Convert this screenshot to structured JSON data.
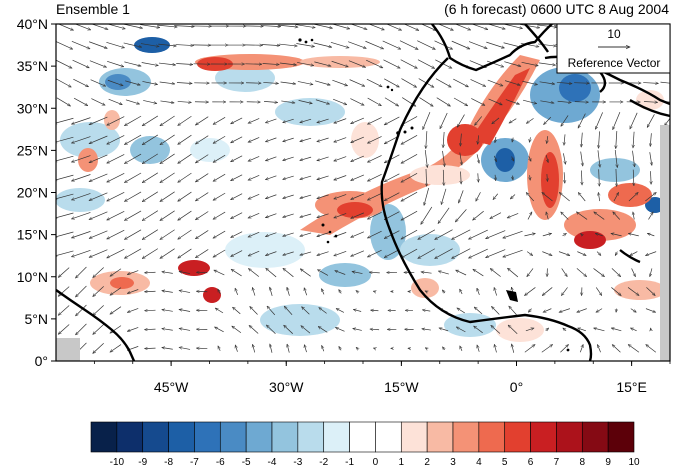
{
  "title_left": "Ensemble 1",
  "title_right": "(6 h forecast) 0600 UTC 8 Aug 2004",
  "reference_vector": {
    "magnitude": "10",
    "label": "Reference Vector"
  },
  "map": {
    "lon_range": [
      -60,
      20
    ],
    "lat_range": [
      0,
      40
    ],
    "lat_ticks": [
      {
        "value": 40,
        "label": "40°N"
      },
      {
        "value": 35,
        "label": "35°N"
      },
      {
        "value": 30,
        "label": "30°N"
      },
      {
        "value": 25,
        "label": "25°N"
      },
      {
        "value": 20,
        "label": "20°N"
      },
      {
        "value": 15,
        "label": "15°N"
      },
      {
        "value": 10,
        "label": "10°N"
      },
      {
        "value": 5,
        "label": "5°N"
      },
      {
        "value": 0,
        "label": "0°"
      }
    ],
    "lon_ticks": [
      {
        "value": -45,
        "label": "45°W"
      },
      {
        "value": -30,
        "label": "30°W"
      },
      {
        "value": -15,
        "label": "15°W"
      },
      {
        "value": 0,
        "label": "0°"
      },
      {
        "value": 15,
        "label": "15°E"
      }
    ]
  },
  "colorbar": {
    "labels": [
      "-10",
      "-9",
      "-8",
      "-7",
      "-6",
      "-5",
      "-4",
      "-3",
      "-2",
      "-1",
      "0",
      "1",
      "2",
      "3",
      "4",
      "5",
      "6",
      "7",
      "8",
      "9",
      "10"
    ],
    "colors": [
      "#08214a",
      "#0d2f6b",
      "#154a8e",
      "#1d5fa6",
      "#2e72b8",
      "#4a8bc4",
      "#6ea9d2",
      "#93c4de",
      "#b9dcec",
      "#dcf0f8",
      "#ffffff",
      "#ffffff",
      "#fde2d8",
      "#f8baa4",
      "#f49276",
      "#ee6a4f",
      "#e2402f",
      "#c91f22",
      "#ac121b",
      "#850a14",
      "#5c0009"
    ]
  }
}
